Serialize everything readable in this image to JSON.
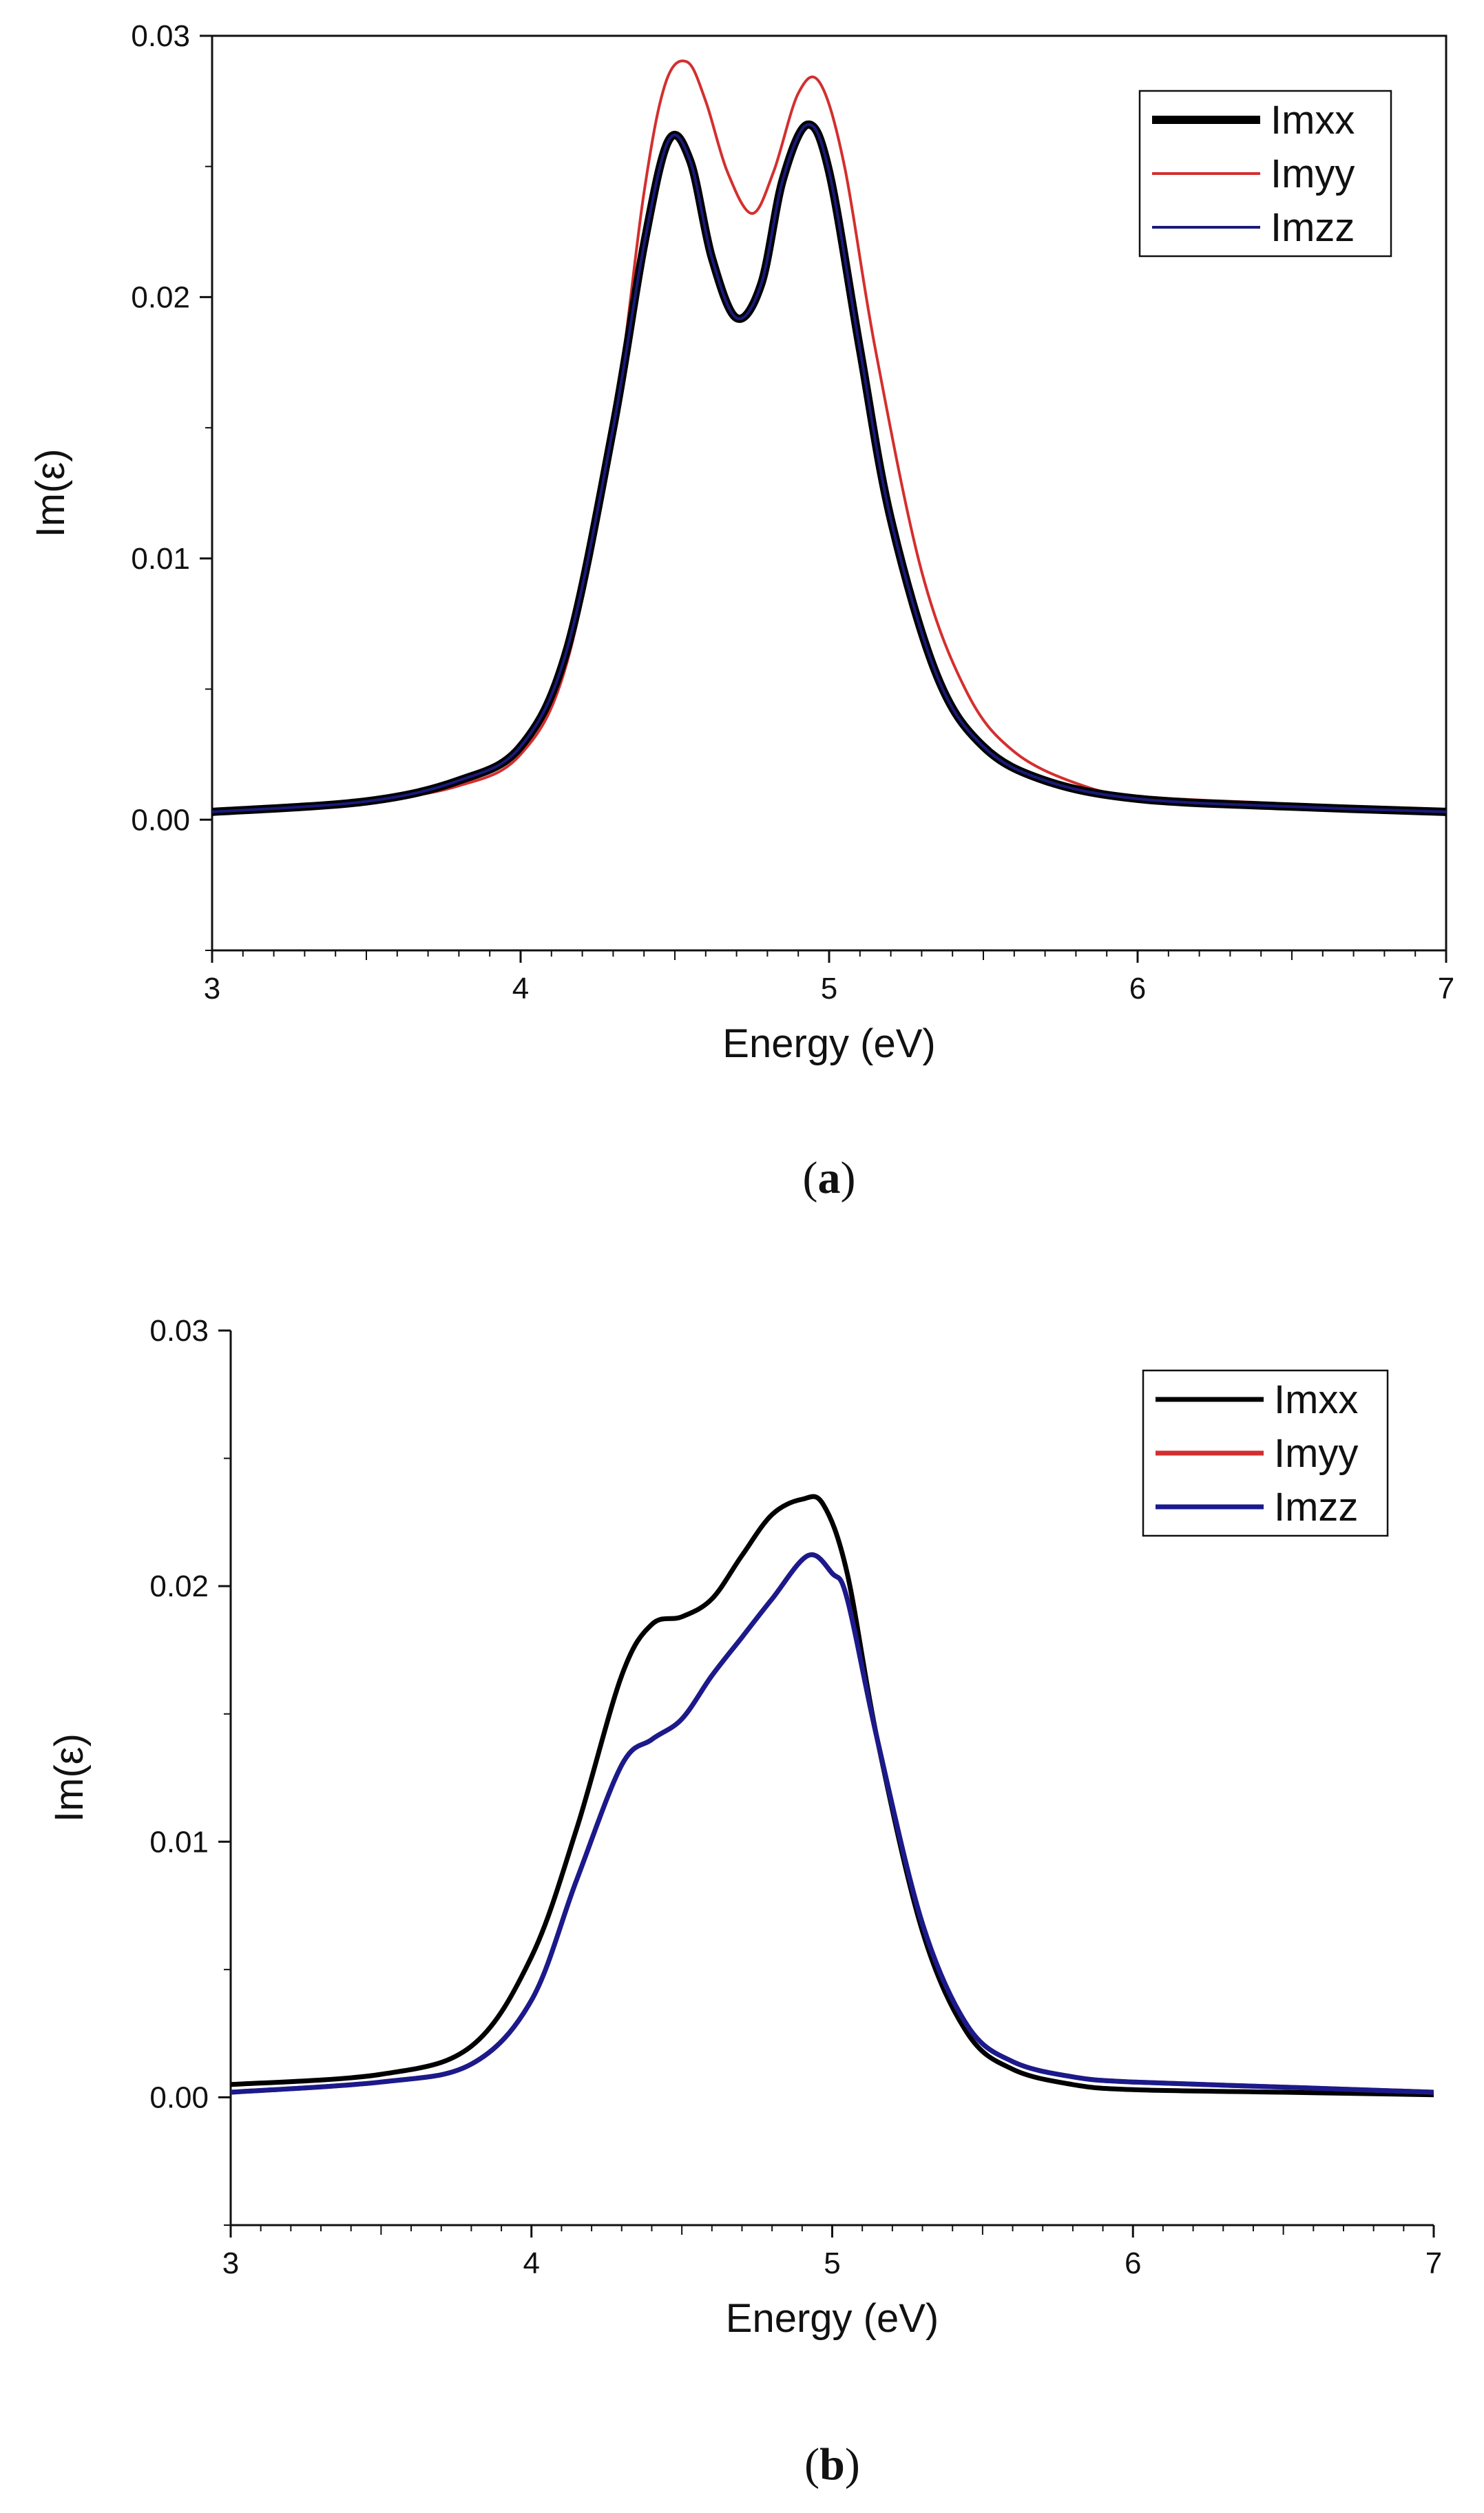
{
  "chart_data": [
    {
      "type": "line",
      "panel": "a",
      "caption_open": "(",
      "caption_letter": "a",
      "caption_close": ")",
      "xlabel": "Energy (eV)",
      "ylabel": "Im(ε)",
      "xlim": [
        3,
        7
      ],
      "ylim": [
        -0.005,
        0.03
      ],
      "xticks": [
        3,
        4,
        5,
        6,
        7
      ],
      "xtick_labels": [
        "3",
        "4",
        "5",
        "6",
        "7"
      ],
      "yticks": [
        0.0,
        0.01,
        0.02,
        0.03
      ],
      "ytick_labels": [
        "0.00",
        "0.01",
        "0.02",
        "0.03"
      ],
      "grid": false,
      "legend_position": "top-right",
      "series": [
        {
          "name": "Imxx",
          "color": "#000000",
          "weight": "thick",
          "x": [
            3.0,
            3.5,
            3.8,
            4.0,
            4.15,
            4.3,
            4.4,
            4.48,
            4.55,
            4.62,
            4.7,
            4.78,
            4.85,
            4.93,
            5.0,
            5.1,
            5.2,
            5.35,
            5.5,
            5.7,
            6.0,
            6.5,
            7.0
          ],
          "values": [
            0.0003,
            0.0007,
            0.0015,
            0.0028,
            0.0065,
            0.015,
            0.022,
            0.026,
            0.0252,
            0.0215,
            0.0192,
            0.0205,
            0.0245,
            0.0266,
            0.0248,
            0.018,
            0.0115,
            0.0055,
            0.0028,
            0.0015,
            0.0008,
            0.0005,
            0.0003
          ]
        },
        {
          "name": "Imyy",
          "color": "#d32f2f",
          "weight": "thin",
          "x": [
            3.0,
            3.5,
            3.8,
            4.0,
            4.15,
            4.3,
            4.4,
            4.47,
            4.54,
            4.6,
            4.67,
            4.75,
            4.82,
            4.9,
            4.97,
            5.05,
            5.15,
            5.3,
            5.45,
            5.6,
            5.8,
            6.0,
            6.5,
            7.0
          ],
          "values": [
            0.0003,
            0.0007,
            0.0013,
            0.0025,
            0.006,
            0.015,
            0.024,
            0.0282,
            0.029,
            0.0275,
            0.0248,
            0.0232,
            0.0248,
            0.0278,
            0.0282,
            0.025,
            0.018,
            0.0095,
            0.0048,
            0.0026,
            0.0014,
            0.0009,
            0.0006,
            0.0003
          ]
        },
        {
          "name": "Imzz",
          "color": "#1a1a7a",
          "weight": "thin",
          "x": [
            3.0,
            3.5,
            3.8,
            4.0,
            4.15,
            4.3,
            4.4,
            4.48,
            4.55,
            4.62,
            4.7,
            4.78,
            4.85,
            4.93,
            5.0,
            5.1,
            5.2,
            5.35,
            5.5,
            5.7,
            6.0,
            6.5,
            7.0
          ],
          "values": [
            0.0003,
            0.0007,
            0.0015,
            0.0028,
            0.0065,
            0.015,
            0.022,
            0.026,
            0.0252,
            0.0215,
            0.0192,
            0.0205,
            0.0245,
            0.0266,
            0.0248,
            0.018,
            0.0115,
            0.0055,
            0.0028,
            0.0015,
            0.0008,
            0.0005,
            0.0003
          ]
        }
      ]
    },
    {
      "type": "line",
      "panel": "b",
      "caption_open": "(",
      "caption_letter": "b",
      "caption_close": ")",
      "xlabel": "Energy (eV)",
      "ylabel": "Im(ε)",
      "xlim": [
        3,
        7
      ],
      "ylim": [
        -0.005,
        0.03
      ],
      "xticks": [
        3,
        4,
        5,
        6,
        7
      ],
      "xtick_labels": [
        "3",
        "4",
        "5",
        "6",
        "7"
      ],
      "yticks": [
        0.0,
        0.01,
        0.02,
        0.03
      ],
      "ytick_labels": [
        "0.00",
        "0.01",
        "0.02",
        "0.03"
      ],
      "grid": false,
      "legend_position": "top-right",
      "series": [
        {
          "name": "Imxx",
          "color": "#000000",
          "weight": "medium",
          "x": [
            3.0,
            3.5,
            3.8,
            4.0,
            4.15,
            4.3,
            4.4,
            4.5,
            4.6,
            4.7,
            4.8,
            4.9,
            4.97,
            5.05,
            5.15,
            5.3,
            5.45,
            5.6,
            5.8,
            6.0,
            6.5,
            7.0
          ],
          "values": [
            0.0005,
            0.0009,
            0.002,
            0.0055,
            0.0105,
            0.0165,
            0.0185,
            0.0188,
            0.0195,
            0.0212,
            0.0228,
            0.0234,
            0.0232,
            0.0205,
            0.014,
            0.0065,
            0.0025,
            0.0011,
            0.0005,
            0.0003,
            0.0002,
            0.0001
          ]
        },
        {
          "name": "Imyy",
          "color": "#d32f2f",
          "weight": "medium",
          "x": [
            3.0,
            3.5,
            3.8,
            4.0,
            4.15,
            4.3,
            4.4,
            4.5,
            4.6,
            4.7,
            4.8,
            4.92,
            5.0,
            5.05,
            5.15,
            5.3,
            5.45,
            5.6,
            5.8,
            6.0,
            6.5,
            7.0
          ],
          "values": [
            0.0002,
            0.0006,
            0.0013,
            0.0038,
            0.0085,
            0.013,
            0.014,
            0.0148,
            0.0165,
            0.018,
            0.0195,
            0.0212,
            0.0205,
            0.0195,
            0.014,
            0.0068,
            0.0028,
            0.0014,
            0.0008,
            0.0006,
            0.0004,
            0.0002
          ]
        },
        {
          "name": "Imzz",
          "color": "#1a1a8c",
          "weight": "medium",
          "x": [
            3.0,
            3.5,
            3.8,
            4.0,
            4.15,
            4.3,
            4.4,
            4.5,
            4.6,
            4.7,
            4.8,
            4.92,
            5.0,
            5.05,
            5.15,
            5.3,
            5.45,
            5.6,
            5.8,
            6.0,
            6.5,
            7.0
          ],
          "values": [
            0.0002,
            0.0006,
            0.0013,
            0.0038,
            0.0085,
            0.013,
            0.014,
            0.0148,
            0.0165,
            0.018,
            0.0195,
            0.0212,
            0.0205,
            0.0195,
            0.014,
            0.0068,
            0.0028,
            0.0014,
            0.0008,
            0.0006,
            0.0004,
            0.0002
          ]
        }
      ]
    }
  ]
}
